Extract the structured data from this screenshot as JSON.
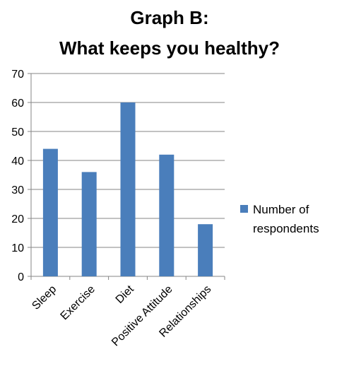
{
  "chart_data": {
    "type": "bar",
    "title_lines": [
      "Graph B:",
      "What keeps you healthy?"
    ],
    "categories": [
      "Sleep",
      "Exercise",
      "Diet",
      "Positive Attitude",
      "Relationships"
    ],
    "series": [
      {
        "name": "Number of respondents",
        "values": [
          44,
          36,
          60,
          42,
          18
        ],
        "color": "#4a7ebb"
      }
    ],
    "legend_lines": [
      "Number of",
      "respondents"
    ],
    "xlabel": "",
    "ylabel": "",
    "ylim": [
      0,
      70
    ],
    "y_ticks": [
      0,
      10,
      20,
      30,
      40,
      50,
      60,
      70
    ],
    "grid": true,
    "legend_position": "right",
    "grid_color": "#868686",
    "axis_color": "#868686"
  }
}
